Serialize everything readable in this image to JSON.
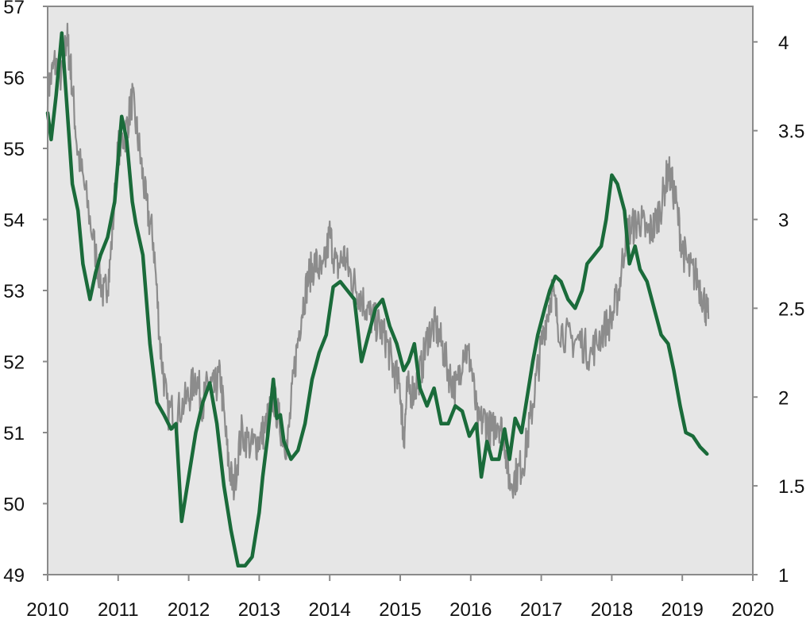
{
  "chart_data": {
    "type": "line",
    "title": "",
    "xlabel": "",
    "ylabel": "",
    "y2label": "",
    "grid": false,
    "colors": {
      "plot_bg": "#e6e6e6",
      "frame": "#8a8a8a",
      "gray_series": "#8c8c8c",
      "green_series": "#1a6b3a"
    },
    "x_ticks": [
      2010,
      2011,
      2012,
      2013,
      2014,
      2015,
      2016,
      2017,
      2018,
      2019,
      2020
    ],
    "xlim": [
      2010,
      2020
    ],
    "ylim_left": [
      49,
      57
    ],
    "left_ticks": [
      49,
      50,
      51,
      52,
      53,
      54,
      55,
      56,
      57
    ],
    "ylim_right": [
      1,
      4.2
    ],
    "right_ticks": [
      1,
      1.5,
      2,
      2.5,
      3,
      3.5,
      4
    ],
    "series": [
      {
        "axis": "left",
        "style": "noisy",
        "x": [
          2010.0,
          2010.1,
          2010.2,
          2010.27,
          2010.33,
          2010.42,
          2010.55,
          2010.7,
          2010.8,
          2010.88,
          2011.0,
          2011.1,
          2011.2,
          2011.3,
          2011.4,
          2011.5,
          2011.6,
          2011.7,
          2011.85,
          2012.0,
          2012.1,
          2012.2,
          2012.28,
          2012.36,
          2012.45,
          2012.55,
          2012.63,
          2012.75,
          2012.9,
          2013.0,
          2013.1,
          2013.2,
          2013.3,
          2013.4,
          2013.5,
          2013.6,
          2013.7,
          2013.8,
          2013.9,
          2014.0,
          2014.1,
          2014.2,
          2014.3,
          2014.4,
          2014.5,
          2014.6,
          2014.7,
          2014.8,
          2014.9,
          2015.0,
          2015.05,
          2015.1,
          2015.2,
          2015.3,
          2015.4,
          2015.5,
          2015.6,
          2015.7,
          2015.8,
          2015.9,
          2016.0,
          2016.1,
          2016.2,
          2016.3,
          2016.38,
          2016.48,
          2016.55,
          2016.65,
          2016.75,
          2016.85,
          2016.95,
          2017.05,
          2017.15,
          2017.25,
          2017.4,
          2017.55,
          2017.7,
          2017.85,
          2018.0,
          2018.1,
          2018.2,
          2018.3,
          2018.4,
          2018.5,
          2018.6,
          2018.7,
          2018.8,
          2018.9,
          2019.0,
          2019.1,
          2019.2,
          2019.3,
          2019.37
        ],
        "y": [
          55.8,
          56.2,
          56.0,
          56.6,
          56.1,
          55.0,
          54.3,
          53.4,
          52.9,
          53.3,
          55.0,
          55.2,
          55.7,
          55.0,
          54.2,
          53.7,
          52.2,
          51.3,
          51.3,
          51.5,
          51.8,
          51.4,
          51.7,
          51.6,
          51.8,
          50.7,
          50.2,
          51.0,
          50.8,
          50.9,
          51.1,
          51.5,
          51.1,
          50.8,
          51.9,
          52.7,
          53.2,
          53.4,
          53.2,
          53.8,
          53.3,
          53.5,
          53.2,
          53.0,
          52.8,
          52.6,
          52.5,
          52.3,
          51.9,
          51.6,
          50.9,
          51.6,
          51.6,
          51.9,
          52.4,
          52.5,
          52.2,
          51.8,
          51.6,
          52.2,
          52.0,
          51.1,
          51.2,
          51.0,
          51.2,
          50.9,
          50.3,
          50.4,
          50.6,
          51.2,
          51.9,
          52.5,
          53.0,
          52.5,
          52.3,
          52.3,
          52.1,
          52.4,
          52.6,
          53.0,
          53.8,
          53.9,
          54.0,
          53.8,
          53.9,
          54.2,
          54.7,
          54.3,
          53.6,
          53.3,
          53.2,
          52.9,
          52.6
        ],
        "values_note": ""
      },
      {
        "axis": "right",
        "style": "smooth",
        "x": [
          2010.0,
          2010.05,
          2010.12,
          2010.2,
          2010.28,
          2010.35,
          2010.43,
          2010.5,
          2010.6,
          2010.68,
          2010.75,
          2010.85,
          2010.95,
          2011.05,
          2011.12,
          2011.2,
          2011.25,
          2011.35,
          2011.45,
          2011.55,
          2011.65,
          2011.75,
          2011.82,
          2011.9,
          2012.0,
          2012.1,
          2012.2,
          2012.3,
          2012.4,
          2012.5,
          2012.6,
          2012.7,
          2012.8,
          2012.9,
          2013.0,
          2013.05,
          2013.12,
          2013.2,
          2013.25,
          2013.3,
          2013.35,
          2013.45,
          2013.55,
          2013.65,
          2013.75,
          2013.85,
          2013.95,
          2014.05,
          2014.15,
          2014.25,
          2014.35,
          2014.45,
          2014.55,
          2014.65,
          2014.75,
          2014.85,
          2014.95,
          2015.05,
          2015.12,
          2015.2,
          2015.28,
          2015.38,
          2015.48,
          2015.58,
          2015.68,
          2015.78,
          2015.88,
          2015.98,
          2016.08,
          2016.15,
          2016.23,
          2016.3,
          2016.4,
          2016.48,
          2016.55,
          2016.63,
          2016.72,
          2016.8,
          2016.88,
          2016.95,
          2017.05,
          2017.12,
          2017.2,
          2017.28,
          2017.38,
          2017.48,
          2017.58,
          2017.65,
          2017.75,
          2017.85,
          2017.92,
          2018.0,
          2018.08,
          2018.18,
          2018.25,
          2018.33,
          2018.4,
          2018.5,
          2018.6,
          2018.7,
          2018.8,
          2018.88,
          2018.97,
          2019.05,
          2019.15,
          2019.25,
          2019.35
        ],
        "y": [
          3.6,
          3.45,
          3.7,
          4.05,
          3.6,
          3.2,
          3.05,
          2.75,
          2.55,
          2.7,
          2.8,
          2.9,
          3.1,
          3.58,
          3.45,
          3.1,
          2.98,
          2.8,
          2.3,
          1.97,
          1.9,
          1.82,
          1.85,
          1.3,
          1.55,
          1.8,
          1.97,
          2.08,
          1.85,
          1.5,
          1.25,
          1.05,
          1.05,
          1.1,
          1.35,
          1.55,
          1.78,
          2.1,
          1.88,
          1.9,
          1.75,
          1.65,
          1.7,
          1.85,
          2.1,
          2.25,
          2.35,
          2.62,
          2.65,
          2.6,
          2.55,
          2.2,
          2.35,
          2.5,
          2.55,
          2.4,
          2.3,
          2.15,
          2.2,
          2.3,
          2.05,
          1.95,
          2.05,
          1.85,
          1.85,
          1.95,
          1.92,
          1.78,
          1.85,
          1.55,
          1.75,
          1.65,
          1.65,
          1.82,
          1.65,
          1.88,
          1.8,
          2.0,
          2.2,
          2.35,
          2.5,
          2.6,
          2.68,
          2.65,
          2.55,
          2.5,
          2.6,
          2.75,
          2.8,
          2.85,
          3.0,
          3.25,
          3.2,
          3.05,
          2.75,
          2.85,
          2.72,
          2.65,
          2.5,
          2.35,
          2.3,
          2.15,
          1.95,
          1.8,
          1.78,
          1.72,
          1.68
        ]
      }
    ]
  }
}
